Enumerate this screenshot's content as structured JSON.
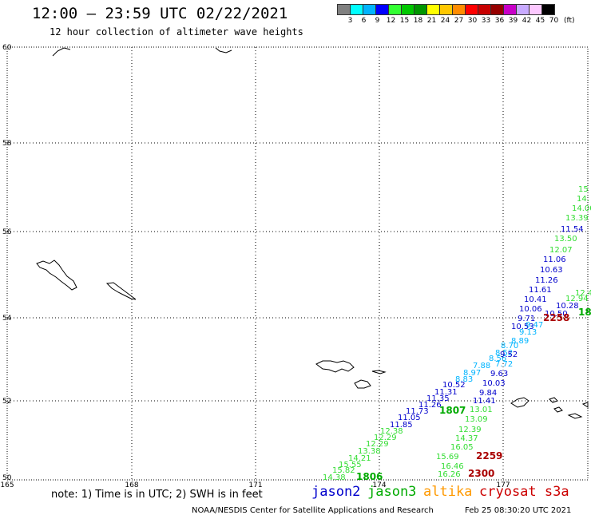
{
  "header": {
    "title": "12:00 – 23:59 UTC 02/22/2021",
    "subtitle": "12 hour collection of altimeter wave heights"
  },
  "legend": {
    "colors": [
      "#808080",
      "#00ffff",
      "#00b4ff",
      "#0000ff",
      "#32ff32",
      "#00c800",
      "#009600",
      "#ffff00",
      "#ffc800",
      "#ff8c00",
      "#ff0000",
      "#c80000",
      "#960000",
      "#c800c8",
      "#c8aaff",
      "#fcc8ff",
      "#000000"
    ],
    "labels": [
      "3",
      "6",
      "9",
      "12",
      "15",
      "18",
      "21",
      "24",
      "27",
      "30",
      "33",
      "36",
      "39",
      "42",
      "45",
      "70"
    ],
    "unit": "(ft)"
  },
  "map": {
    "lat_labels": [
      "60",
      "58",
      "56",
      "54",
      "52",
      "50"
    ],
    "lon_labels": [
      "165",
      "168",
      "171",
      "174",
      "177"
    ],
    "track_colors": {
      "jason2": "#0000cc",
      "jason3": "#00aa00",
      "sat_light": "#00b4ff",
      "cryosat": "#aa0000",
      "green_light": "#32dd32"
    },
    "tracks": [
      {
        "color": "green_light",
        "values": [
          "15",
          "14.",
          "14.00",
          "13.39",
          "13.50",
          "12.07"
        ]
      },
      {
        "color": "jason2",
        "values": [
          "11.54",
          "11.06",
          "10.63",
          "11.26",
          "11.61",
          "10.41",
          "10.06",
          "9.71",
          "10.53",
          "10.28",
          "10.50"
        ]
      },
      {
        "color": "green_light",
        "values": [
          "12.4",
          "12.94"
        ]
      },
      {
        "color": "jason3",
        "values": [
          "18"
        ]
      },
      {
        "color": "cryosat",
        "values": [
          "2258",
          "2259",
          "2300"
        ]
      },
      {
        "color": "sat_light",
        "values": [
          "9.47",
          "9.13",
          "8.89",
          "8.70",
          "8.52",
          "8.56",
          "7.72",
          "7.88",
          "8.97",
          "8.83"
        ]
      },
      {
        "color": "jason2",
        "values": [
          "9.52",
          "9.63",
          "10.03",
          "9.84",
          "10.52",
          "11.31",
          "11.41",
          "11.35",
          "11.26",
          "11.73",
          "11.05",
          "11.85"
        ]
      },
      {
        "color": "green_light",
        "values": [
          "13.01",
          "13.09",
          "12.39",
          "14.37",
          "16.05",
          "15.69",
          "16.46",
          "16.26"
        ]
      },
      {
        "color": "green_light",
        "values": [
          "12.38",
          "12.29",
          "12.29",
          "13.38",
          "14.21",
          "15.55",
          "15.82",
          "14.38"
        ]
      },
      {
        "color": "jason3",
        "values": [
          "1807",
          "1806"
        ]
      }
    ]
  },
  "note": "note:  1) Time is in UTC;  2) SWH is in feet",
  "satellites": [
    {
      "name": "jason2",
      "color": "#0000cc"
    },
    {
      "name": "jason3",
      "color": "#00aa00"
    },
    {
      "name": "altika",
      "color": "#ff9900"
    },
    {
      "name": "cryosat s3a",
      "color": "#cc0000"
    }
  ],
  "footer": {
    "credit": "NOAA/NESDIS Center for Satellite Applications and Research",
    "timestamp": "Feb 25 08:30:20 UTC 2021"
  }
}
